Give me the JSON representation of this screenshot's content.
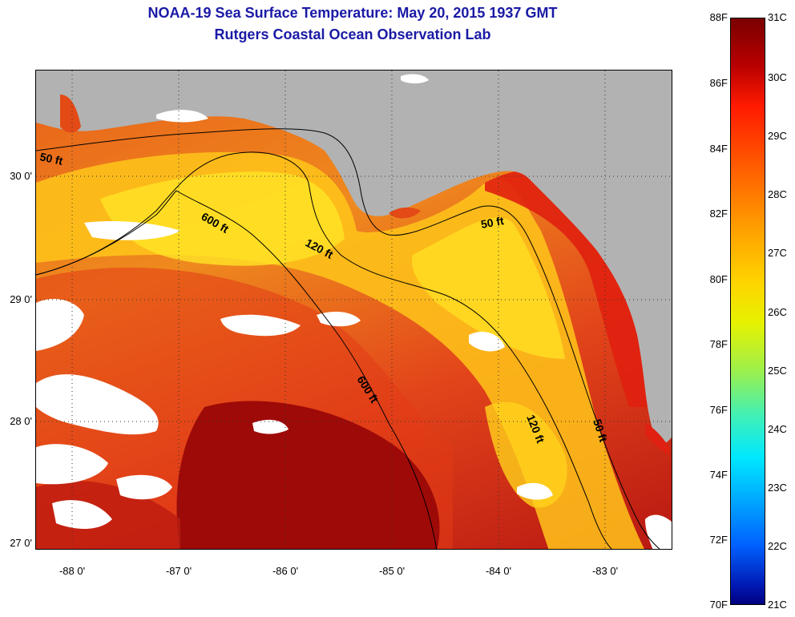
{
  "header": {
    "title_line1": "NOAA-19 Sea Surface Temperature:  May 20, 2015 1937 GMT",
    "title_line2": "Rutgers Coastal Ocean Observation Lab"
  },
  "map": {
    "latitude_labels": [
      "30 0'",
      "29 0'",
      "28 0'",
      "27 0'"
    ],
    "longitude_labels": [
      "-88 0'",
      "-87 0'",
      "-86 0'",
      "-85 0'",
      "-84 0'",
      "-83 0'"
    ],
    "contour_labels": [
      "50 ft",
      "600 ft",
      "120 ft",
      "50 ft",
      "600 ft",
      "120 ft",
      "50 ft"
    ],
    "colors": {
      "land": "#b2b2b2",
      "cloud": "#ffffff",
      "warm_core": "#9e0a08",
      "coastal_warm": "#e02010",
      "shelf_yellow": "#ffd21a",
      "contour": "#000000"
    }
  },
  "colorbar": {
    "fahrenheit_labels": [
      "88F",
      "86F",
      "84F",
      "82F",
      "80F",
      "78F",
      "76F",
      "74F",
      "72F",
      "70F"
    ],
    "celsius_labels": [
      "31C",
      "30C",
      "29C",
      "28C",
      "27C",
      "26C",
      "25C",
      "24C",
      "23C",
      "22C",
      "21C"
    ]
  }
}
